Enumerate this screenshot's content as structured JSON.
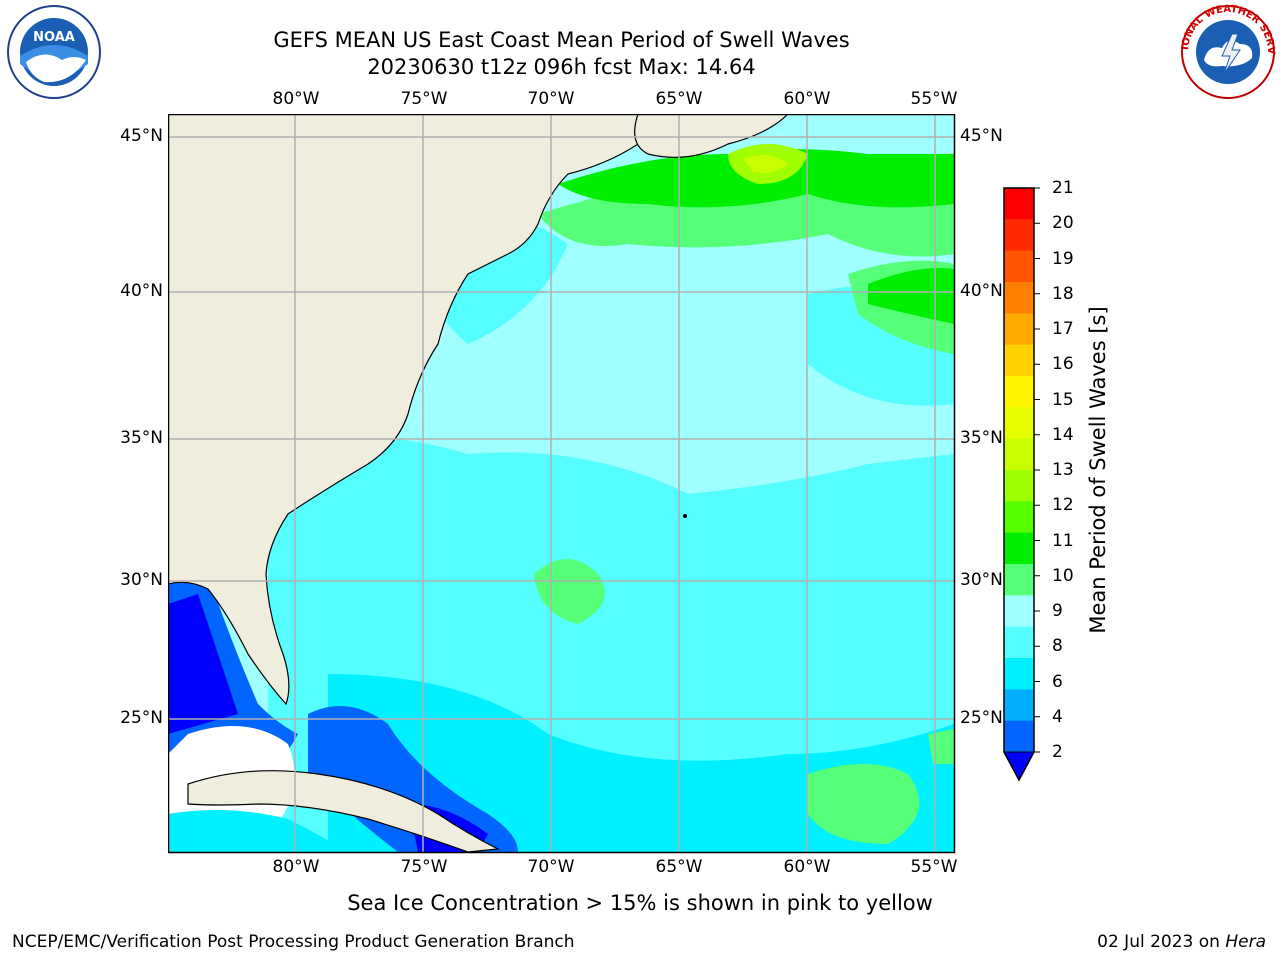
{
  "header": {
    "title_line1": "GEFS MEAN US East Coast Mean Period of Swell Waves",
    "title_line2": "20230630 t12z 096h fcst   Max: 14.64"
  },
  "logos": {
    "left": {
      "name": "noaa-logo",
      "text": "NOAA"
    },
    "right": {
      "name": "nws-logo",
      "text": "NATIONAL WEATHER SERVICE"
    }
  },
  "map": {
    "longitude_labels": [
      "80°W",
      "75°W",
      "70°W",
      "65°W",
      "60°W",
      "55°W"
    ],
    "latitude_labels": [
      "45°N",
      "40°N",
      "35°N",
      "30°N",
      "25°N"
    ],
    "colors": {
      "land": "#eeedde",
      "grid": "#b0b0b0",
      "coast": "#000000",
      "no_data": "#ffffff"
    }
  },
  "colorbar": {
    "label": "Mean Period of Swell Waves [s]",
    "ticks": [
      "21",
      "20",
      "19",
      "18",
      "17",
      "16",
      "15",
      "14",
      "13",
      "12",
      "11",
      "10",
      "9",
      "8",
      "6",
      "4",
      "2"
    ],
    "segment_colors": [
      "#ff0000",
      "#ff2a00",
      "#ff5500",
      "#ff8000",
      "#ffaa00",
      "#ffd200",
      "#fff500",
      "#e6ff00",
      "#c8ff00",
      "#a0ff00",
      "#55ff00",
      "#00ee00",
      "#55ff77",
      "#a0ffff",
      "#55ffff",
      "#00f0ff",
      "#00b0ff",
      "#0066ff"
    ],
    "extend_color": "#0000ff"
  },
  "footer": {
    "note": "Sea Ice Concentration > 15% is shown in pink to yellow",
    "credit": "NCEP/EMC/Verification Post Processing Product Generation Branch",
    "date": "02 Jul 2023 on ",
    "machine": "Hera"
  }
}
